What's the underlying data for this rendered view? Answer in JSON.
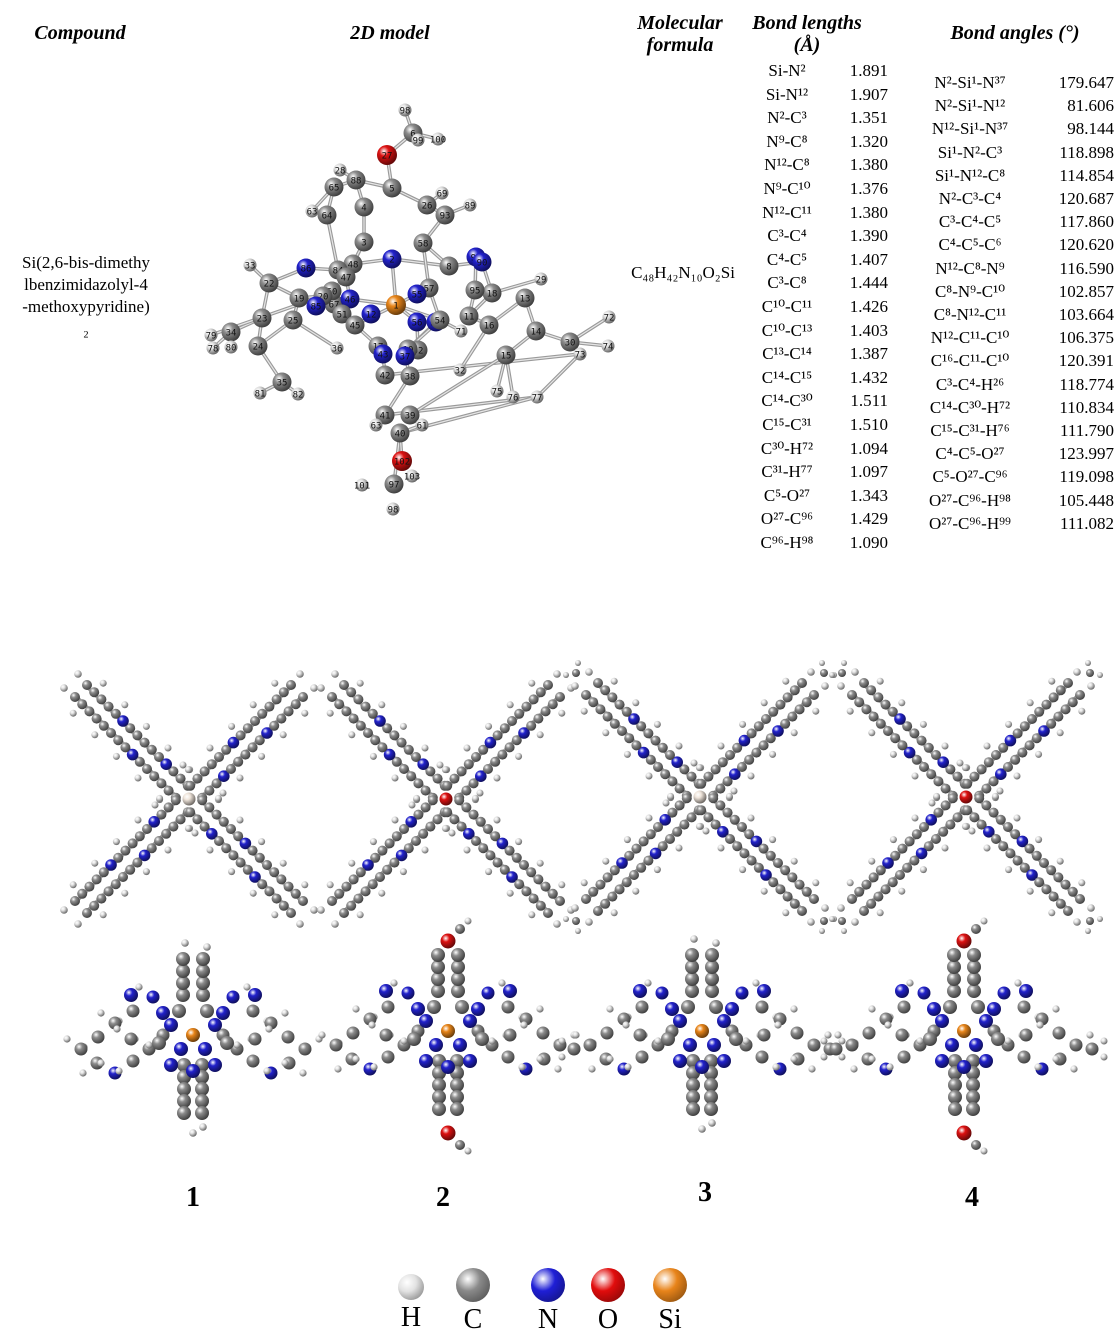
{
  "table": {
    "headers": {
      "compound": "Compound",
      "model": "2D model",
      "formula": "Molecular formula",
      "bond_lengths": "Bond lengths (Å)",
      "bond_angles": "Bond angles (°)"
    },
    "compound_name": "Si(2,6-bis-dimethylbenzimidazolyl-4-methoxypyridine)₂",
    "formula": "C₄₈H₄₂N₁₀O₂Si",
    "bond_lengths": [
      {
        "bond": "Si-N²",
        "value": "1.891"
      },
      {
        "bond": "Si-N¹²",
        "value": "1.907"
      },
      {
        "bond": "N²-C³",
        "value": "1.351"
      },
      {
        "bond": "N⁹-C⁸",
        "value": "1.320"
      },
      {
        "bond": "N¹²-C⁸",
        "value": "1.380"
      },
      {
        "bond": "N⁹-C¹⁰",
        "value": "1.376"
      },
      {
        "bond": "N¹²-C¹¹",
        "value": "1.380"
      },
      {
        "bond": "C³-C⁴",
        "value": "1.390"
      },
      {
        "bond": "C⁴-C⁵",
        "value": "1.407"
      },
      {
        "bond": "C³-C⁸",
        "value": "1.444"
      },
      {
        "bond": "C¹⁰-C¹¹",
        "value": "1.426"
      },
      {
        "bond": "C¹⁰-C¹³",
        "value": "1.403"
      },
      {
        "bond": "C¹³-C¹⁴",
        "value": "1.387"
      },
      {
        "bond": "C¹⁴-C¹⁵",
        "value": "1.432"
      },
      {
        "bond": "C¹⁴-C³⁰",
        "value": "1.511"
      },
      {
        "bond": "C¹⁵-C³¹",
        "value": "1.510"
      },
      {
        "bond": "C³⁰-H⁷²",
        "value": "1.094"
      },
      {
        "bond": "C³¹-H⁷⁷",
        "value": "1.097"
      },
      {
        "bond": "C⁵-O²⁷",
        "value": "1.343"
      },
      {
        "bond": "O²⁷-C⁹⁶",
        "value": "1.429"
      },
      {
        "bond": "C⁹⁶-H⁹⁸",
        "value": "1.090"
      }
    ],
    "bond_angles": [
      {
        "angle": "N²-Si¹-N³⁷",
        "value": "179.647"
      },
      {
        "angle": "N²-Si¹-N¹²",
        "value": "81.606"
      },
      {
        "angle": "N¹²-Si¹-N³⁷",
        "value": "98.144"
      },
      {
        "angle": "Si¹-N²-C³",
        "value": "118.898"
      },
      {
        "angle": "Si¹-N¹²-C⁸",
        "value": "114.854"
      },
      {
        "angle": "N²-C³-C⁴",
        "value": "120.687"
      },
      {
        "angle": "C³-C⁴-C⁵",
        "value": "117.860"
      },
      {
        "angle": "C⁴-C⁵-C⁶",
        "value": "120.620"
      },
      {
        "angle": "N¹²-C⁸-N⁹",
        "value": "116.590"
      },
      {
        "angle": "C⁸-N⁹-C¹⁰",
        "value": "102.857"
      },
      {
        "angle": "C⁸-N¹²-C¹¹",
        "value": "103.664"
      },
      {
        "angle": "N¹²-C¹¹-C¹⁰",
        "value": "106.375"
      },
      {
        "angle": "C¹⁶-C¹¹-C¹⁰",
        "value": "120.391"
      },
      {
        "angle": "C³-C⁴-H²⁶",
        "value": "118.774"
      },
      {
        "angle": "C¹⁴-C³⁰-H⁷²",
        "value": "110.834"
      },
      {
        "angle": "C¹⁵-C³¹-H⁷⁶",
        "value": "111.790"
      },
      {
        "angle": "C⁴-C⁵-O²⁷",
        "value": "123.997"
      },
      {
        "angle": "C⁵-O²⁷-C⁹⁶",
        "value": "119.098"
      },
      {
        "angle": "O²⁷-C⁹⁶-H⁹⁸",
        "value": "105.448"
      },
      {
        "angle": "O²⁷-C⁹⁶-H⁹⁹",
        "value": "111.082"
      }
    ]
  },
  "model_atom_labels": [
    "98",
    "6",
    "99",
    "100",
    "27",
    "5",
    "28",
    "88",
    "65",
    "4",
    "26",
    "69",
    "93",
    "89",
    "63",
    "64",
    "3",
    "58",
    "91",
    "86",
    "48",
    "2",
    "8",
    "90",
    "33",
    "84",
    "47",
    "57",
    "55",
    "18",
    "29",
    "67",
    "46",
    "50",
    "12",
    "53",
    "11",
    "22",
    "19",
    "20",
    "54",
    "71",
    "95",
    "79",
    "85",
    "51",
    "45",
    "1",
    "56",
    "17",
    "13",
    "23",
    "34",
    "78",
    "80",
    "52",
    "10",
    "16",
    "14",
    "24",
    "25",
    "36",
    "43",
    "37",
    "30",
    "72",
    "81",
    "35",
    "82",
    "42",
    "38",
    "15",
    "32",
    "74",
    "73",
    "41",
    "39",
    "75",
    "76",
    "77",
    "63",
    "40",
    "61",
    "97",
    "102",
    "103",
    "101"
  ],
  "molecule_labels": [
    "1",
    "2",
    "3",
    "4"
  ],
  "legend": [
    {
      "symbol": "H",
      "color": "#e2e2e2"
    },
    {
      "symbol": "C",
      "color": "#8a8a8a"
    },
    {
      "symbol": "N",
      "color": "#1f1fd6"
    },
    {
      "symbol": "O",
      "color": "#e10c0c"
    },
    {
      "symbol": "Si",
      "color": "#e8841a"
    }
  ],
  "atom_colors": {
    "H": "#e2e2e2",
    "C": "#8c8c8c",
    "N": "#2222cc",
    "O": "#dd1111",
    "Si": "#e88519"
  }
}
